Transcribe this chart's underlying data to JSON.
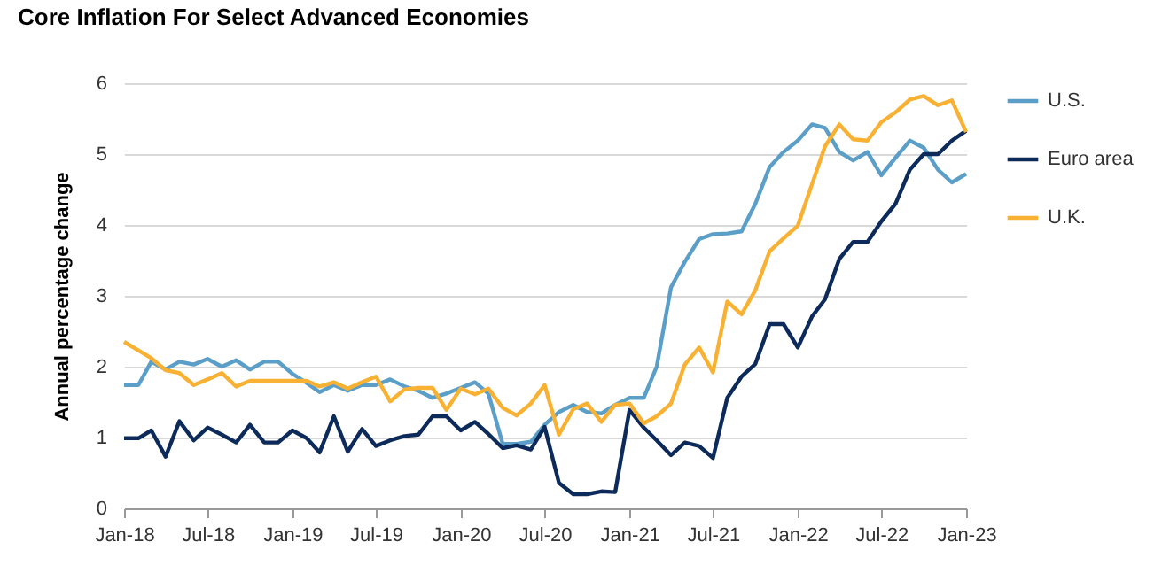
{
  "chart_data": {
    "type": "line",
    "title": "Core Inflation For Select Advanced Economies",
    "ylabel": "Annual percentage change",
    "x": [
      "2018-01",
      "2018-02",
      "2018-03",
      "2018-04",
      "2018-05",
      "2018-06",
      "2018-07",
      "2018-08",
      "2018-09",
      "2018-10",
      "2018-11",
      "2018-12",
      "2019-01",
      "2019-02",
      "2019-03",
      "2019-04",
      "2019-05",
      "2019-06",
      "2019-07",
      "2019-08",
      "2019-09",
      "2019-10",
      "2019-11",
      "2019-12",
      "2020-01",
      "2020-02",
      "2020-03",
      "2020-04",
      "2020-05",
      "2020-06",
      "2020-07",
      "2020-08",
      "2020-09",
      "2020-10",
      "2020-11",
      "2020-12",
      "2021-01",
      "2021-02",
      "2021-03",
      "2021-04",
      "2021-05",
      "2021-06",
      "2021-07",
      "2021-08",
      "2021-09",
      "2021-10",
      "2021-11",
      "2021-12",
      "2022-01",
      "2022-02",
      "2022-03",
      "2022-04",
      "2022-05",
      "2022-06",
      "2022-07",
      "2022-08",
      "2022-09",
      "2022-10",
      "2022-11",
      "2022-12",
      "2023-01"
    ],
    "series": [
      {
        "name": "U.S.",
        "color": "#5b9fc9",
        "values": [
          1.74,
          1.74,
          2.07,
          1.96,
          2.07,
          2.03,
          2.11,
          2.0,
          2.09,
          1.96,
          2.07,
          2.07,
          1.9,
          1.77,
          1.64,
          1.74,
          1.66,
          1.74,
          1.74,
          1.82,
          1.72,
          1.66,
          1.56,
          1.62,
          1.7,
          1.78,
          1.62,
          0.91,
          0.91,
          0.94,
          1.18,
          1.36,
          1.46,
          1.36,
          1.34,
          1.46,
          1.56,
          1.56,
          2.0,
          3.12,
          3.48,
          3.8,
          3.87,
          3.88,
          3.91,
          4.3,
          4.82,
          5.03,
          5.19,
          5.42,
          5.37,
          5.03,
          4.91,
          5.03,
          4.7,
          4.95,
          5.19,
          5.09,
          4.78,
          4.6,
          4.72
        ]
      },
      {
        "name": "Euro area",
        "color": "#0d2b5a",
        "values": [
          0.99,
          0.99,
          1.1,
          0.73,
          1.23,
          0.96,
          1.14,
          1.04,
          0.93,
          1.18,
          0.93,
          0.93,
          1.1,
          0.99,
          0.79,
          1.3,
          0.8,
          1.12,
          0.88,
          0.96,
          1.02,
          1.04,
          1.3,
          1.3,
          1.1,
          1.22,
          1.05,
          0.85,
          0.89,
          0.83,
          1.15,
          0.36,
          0.2,
          0.2,
          0.24,
          0.23,
          1.39,
          1.14,
          0.96,
          0.75,
          0.93,
          0.88,
          0.71,
          1.56,
          1.86,
          2.04,
          2.6,
          2.6,
          2.27,
          2.71,
          2.95,
          3.52,
          3.76,
          3.76,
          4.05,
          4.3,
          4.78,
          5.0,
          5.0,
          5.19,
          5.33
        ]
      },
      {
        "name": "U.K.",
        "color": "#f8b133",
        "values": [
          2.35,
          2.23,
          2.12,
          1.95,
          1.91,
          1.74,
          1.82,
          1.91,
          1.72,
          1.8,
          1.8,
          1.8,
          1.8,
          1.8,
          1.72,
          1.78,
          1.69,
          1.78,
          1.86,
          1.51,
          1.68,
          1.7,
          1.7,
          1.39,
          1.69,
          1.61,
          1.69,
          1.42,
          1.31,
          1.48,
          1.74,
          1.04,
          1.4,
          1.48,
          1.22,
          1.46,
          1.48,
          1.2,
          1.3,
          1.48,
          2.03,
          2.27,
          1.92,
          2.92,
          2.74,
          3.08,
          3.63,
          3.81,
          3.99,
          4.58,
          5.11,
          5.42,
          5.21,
          5.19,
          5.45,
          5.59,
          5.77,
          5.82,
          5.69,
          5.76,
          5.31
        ]
      }
    ],
    "xlim": [
      "2018-01",
      "2023-01"
    ],
    "xticks": [
      {
        "value": "2018-01",
        "label": "Jan-18"
      },
      {
        "value": "2018-07",
        "label": "Jul-18"
      },
      {
        "value": "2019-01",
        "label": "Jan-19"
      },
      {
        "value": "2019-07",
        "label": "Jul-19"
      },
      {
        "value": "2020-01",
        "label": "Jan-20"
      },
      {
        "value": "2020-07",
        "label": "Jul-20"
      },
      {
        "value": "2021-01",
        "label": "Jan-21"
      },
      {
        "value": "2021-07",
        "label": "Jul-21"
      },
      {
        "value": "2022-01",
        "label": "Jan-22"
      },
      {
        "value": "2022-07",
        "label": "Jul-22"
      },
      {
        "value": "2023-01",
        "label": "Jan-23"
      }
    ],
    "ylim": [
      0,
      6
    ],
    "yticks": [
      0,
      1,
      2,
      3,
      4,
      5,
      6
    ],
    "grid": "y",
    "legend": "right",
    "line_style": "solid"
  }
}
